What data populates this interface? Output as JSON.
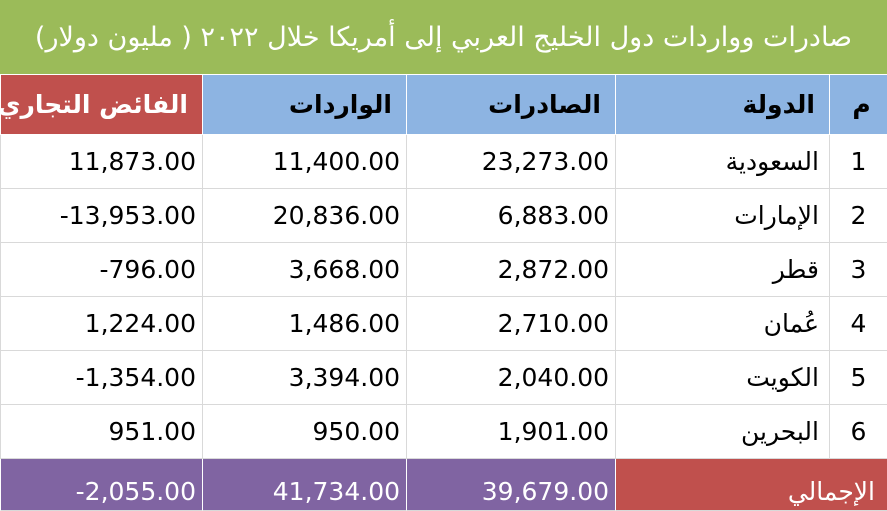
{
  "title": "صادرات وواردات دول الخليج العربي إلى أمريكا خلال ٢٠٢٢ ( مليون دولار)",
  "headers": {
    "index": "م",
    "country": "الدولة",
    "exports": "الصادرات",
    "imports": "الواردات",
    "surplus": "الفائض التجاري"
  },
  "rows": [
    {
      "index": "1",
      "country": "السعودية",
      "exports": "23,273.00",
      "imports": "11,400.00",
      "surplus": "11,873.00"
    },
    {
      "index": "2",
      "country": "الإمارات",
      "exports": "6,883.00",
      "imports": "20,836.00",
      "surplus": "-13,953.00"
    },
    {
      "index": "3",
      "country": "قطر",
      "exports": "2,872.00",
      "imports": "3,668.00",
      "surplus": "-796.00"
    },
    {
      "index": "4",
      "country": "عُمان",
      "exports": "2,710.00",
      "imports": "1,486.00",
      "surplus": "1,224.00"
    },
    {
      "index": "5",
      "country": "الكويت",
      "exports": "2,040.00",
      "imports": "3,394.00",
      "surplus": "-1,354.00"
    },
    {
      "index": "6",
      "country": "البحرين",
      "exports": "1,901.00",
      "imports": "950.00",
      "surplus": "951.00"
    }
  ],
  "total": {
    "label": "الإجمالي",
    "exports": "39,679.00",
    "imports": "41,734.00",
    "surplus": "-2,055.00"
  },
  "colors": {
    "title_bg": "#9bbb59",
    "header_bg": "#8db4e2",
    "surplus_header_bg": "#c0504d",
    "total_label_bg": "#c0504d",
    "total_values_bg": "#8064a2"
  }
}
